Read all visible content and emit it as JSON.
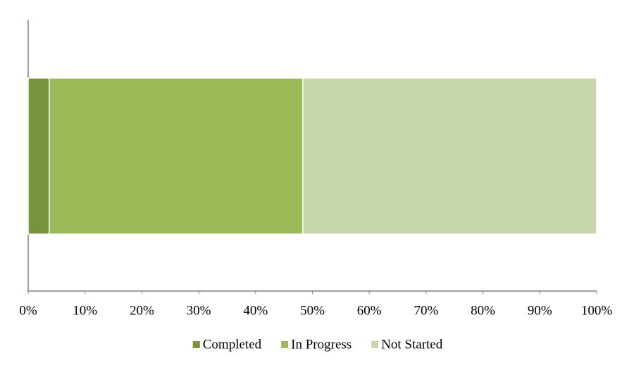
{
  "chart_data": {
    "type": "stacked-bar-horizontal",
    "categories": [
      null
    ],
    "series": [
      {
        "name": "Completed",
        "color": "#77933c",
        "values": [
          3.7
        ]
      },
      {
        "name": "In Progress",
        "color": "#9bbb59",
        "values": [
          44.6
        ]
      },
      {
        "name": "Not Started",
        "color": "#c6d6aa",
        "values": [
          51.7
        ]
      }
    ],
    "xlim": [
      0,
      100
    ],
    "xticks": [
      {
        "value": 0,
        "label": "0%"
      },
      {
        "value": 10,
        "label": "10%"
      },
      {
        "value": 20,
        "label": "20%"
      },
      {
        "value": 30,
        "label": "30%"
      },
      {
        "value": 40,
        "label": "40%"
      },
      {
        "value": 50,
        "label": "50%"
      },
      {
        "value": 60,
        "label": "60%"
      },
      {
        "value": 70,
        "label": "70%"
      },
      {
        "value": 80,
        "label": "80%"
      },
      {
        "value": 90,
        "label": "90%"
      },
      {
        "value": 100,
        "label": "100%"
      }
    ],
    "grid": false,
    "legend": "bottom"
  }
}
